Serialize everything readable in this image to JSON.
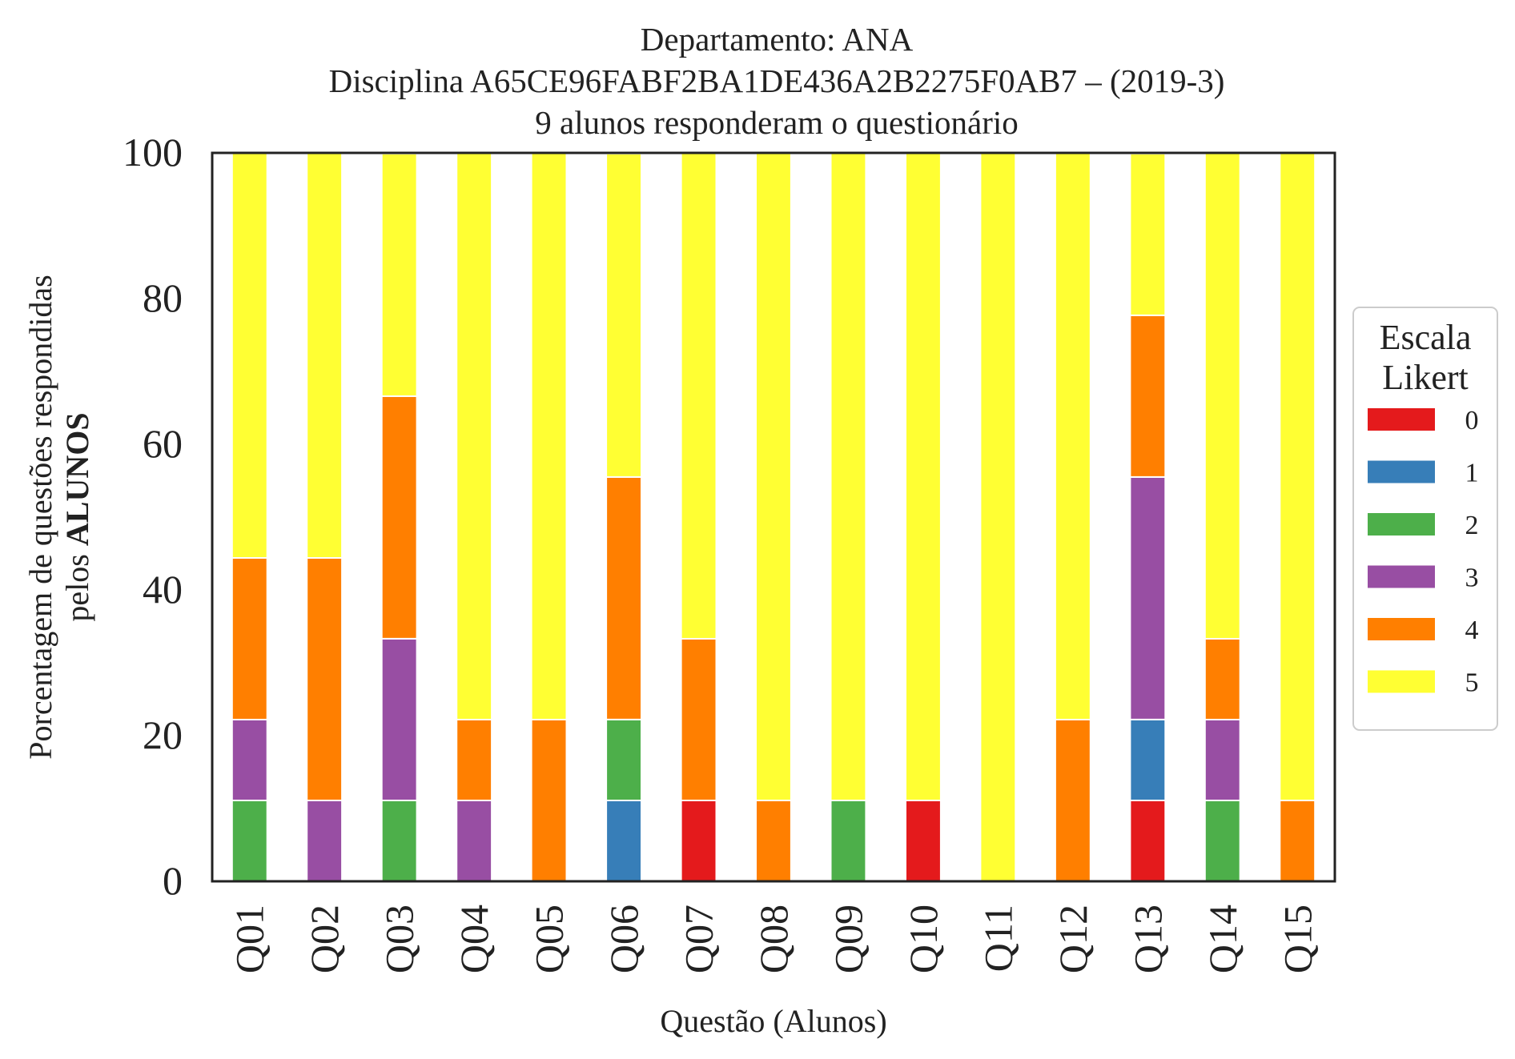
{
  "chart_data": {
    "type": "bar",
    "stacked": true,
    "title_lines": [
      "Departamento: ANA",
      "Disciplina A65CE96FABF2BA1DE436A2B2275F0AB7 – (2019-3)",
      "9 alunos responderam o questionário"
    ],
    "ylabel_line1": "Porcentagem de questões respondidas",
    "ylabel_line2_prefix": "pelos ",
    "ylabel_line2_bold": "ALUNOS",
    "xlabel": "Questão (Alunos)",
    "ylim": [
      0,
      100
    ],
    "yticks": [
      "0",
      "20",
      "40",
      "60",
      "80",
      "100"
    ],
    "grid": false,
    "legend": {
      "title_lines": [
        "Escala",
        "Likert"
      ],
      "placement": "right"
    },
    "categories": [
      "Q01",
      "Q02",
      "Q03",
      "Q04",
      "Q05",
      "Q06",
      "Q07",
      "Q08",
      "Q09",
      "Q10",
      "Q11",
      "Q12",
      "Q13",
      "Q14",
      "Q15"
    ],
    "series": [
      {
        "name": "0",
        "color": "#e41a1c",
        "values": [
          0,
          0,
          0,
          0,
          0,
          0,
          11.1,
          0,
          0,
          11.1,
          0,
          0,
          11.1,
          0,
          0
        ]
      },
      {
        "name": "1",
        "color": "#377eb8",
        "values": [
          0,
          0,
          0,
          0,
          0,
          11.1,
          0,
          0,
          0,
          0,
          0,
          0,
          11.1,
          0,
          0
        ]
      },
      {
        "name": "2",
        "color": "#4daf4a",
        "values": [
          11.1,
          0,
          11.1,
          0,
          0,
          11.1,
          0,
          0,
          11.1,
          0,
          0,
          0,
          0,
          11.1,
          0
        ]
      },
      {
        "name": "3",
        "color": "#984ea3",
        "values": [
          11.1,
          11.1,
          22.2,
          11.1,
          0,
          0,
          0,
          0,
          0,
          0,
          0,
          0,
          33.3,
          11.1,
          0
        ]
      },
      {
        "name": "4",
        "color": "#ff7f00",
        "values": [
          22.2,
          33.3,
          33.3,
          11.1,
          22.2,
          33.3,
          22.2,
          11.1,
          0,
          0,
          0,
          22.2,
          22.2,
          11.1,
          11.1
        ]
      },
      {
        "name": "5",
        "color": "#ffff33",
        "values": [
          55.6,
          55.6,
          33.3,
          77.8,
          77.8,
          44.4,
          66.7,
          88.9,
          88.9,
          88.9,
          100,
          77.8,
          22.2,
          66.7,
          88.9
        ]
      }
    ]
  }
}
